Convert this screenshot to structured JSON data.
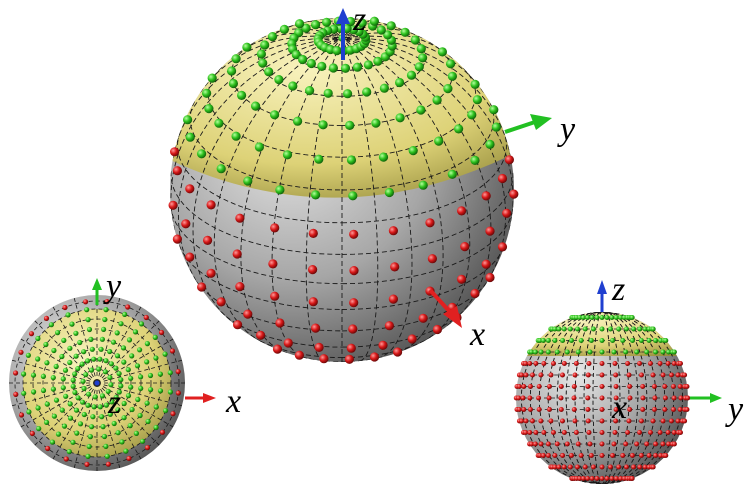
{
  "colors": {
    "background": "#ffffff",
    "sphere_gray": "#9a9a9a",
    "cap_yellow": "#e2d87a",
    "mesh_line": "#1a1a1a",
    "node_green": "#2ec21e",
    "node_red": "#d81818",
    "axis_x": "#e02020",
    "axis_y": "#22c022",
    "axis_z": "#1f3fd0"
  },
  "views": [
    {
      "id": "isometric",
      "axes": [
        {
          "label": "z",
          "color_key": "axis_z"
        },
        {
          "label": "y",
          "color_key": "axis_y"
        },
        {
          "label": "x",
          "color_key": "axis_x"
        }
      ]
    },
    {
      "id": "top",
      "axes": [
        {
          "label": "y",
          "color_key": "axis_y"
        },
        {
          "label": "x",
          "color_key": "axis_x"
        },
        {
          "label": "z",
          "color_key": "axis_z"
        }
      ]
    },
    {
      "id": "side",
      "axes": [
        {
          "label": "z",
          "color_key": "axis_z"
        },
        {
          "label": "x",
          "color_key": "axis_x"
        },
        {
          "label": "y",
          "color_key": "axis_y"
        }
      ]
    }
  ]
}
